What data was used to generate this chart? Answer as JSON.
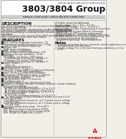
{
  "bg_color": "#f2efe9",
  "header_bg": "#ffffff",
  "title_line1": "MITSUBISHI MICROCOMPUTERS",
  "title_line2": "3803/3804 Group",
  "subtitle": "SINGLE-CHIP 8-BIT CMOS MICROCOMPUTER",
  "description_header": "DESCRIPTION",
  "description_text": [
    "The 3803/3804 group is the microcomputer based on the TAB",
    "family core technology.",
    "The 3803/3804 group is designed for handheld products, office",
    "automation equipment, and controlling systems that require ana-",
    "log signal processing, including the A/D conversion and D/A",
    "conversion.",
    "The 3804 group is the version of the 3803 group to which an PC",
    "3804 control functions have been added."
  ],
  "features_header": "FEATURES",
  "features": [
    [
      "Basic machine language instructions  74",
      0
    ],
    [
      "Minimum instruction execution time  0.33μs",
      0
    ],
    [
      "(at 12 MHz oscillation frequency)",
      6
    ],
    [
      "Memory size",
      0
    ],
    [
      "ROM  to 4 × 16 kilobytes",
      3
    ],
    [
      "RAM  1024 to 2048 bytes",
      3
    ],
    [
      "Program/data memory operations  128",
      0
    ],
    [
      "Software interrupt operations  32-bit",
      0
    ],
    [
      "Interrupts",
      0
    ],
    [
      "13 sources, 54 vectors  3803 group",
      3
    ],
    [
      "(simultaneous interrupt 12, software 7)",
      6
    ],
    [
      "13 sources, 54 vectors  3804 group",
      3
    ],
    [
      "(simultaneous interrupt 12, software 7)",
      6
    ],
    [
      "Timers  16-bit × 1",
      0
    ],
    [
      "3-bit × 2",
      6
    ],
    [
      "(pulse from generation)",
      6
    ],
    [
      "Watchdog timer  16-bit × 1",
      0
    ],
    [
      "Serial I/O  Simple (UART) or Clock synchronous",
      0
    ],
    [
      "(1 to 32 × clock from generation)",
      6
    ],
    [
      "Pulse  16 ms × 1 (basis only available)",
      0
    ],
    [
      "I/O function (CMOS output only)  1-channel",
      0
    ],
    [
      "A/D conversion  10 bits × 16 channels",
      0
    ],
    [
      "(8-bit reading available)",
      6
    ],
    [
      "D/A conversion  8-bit × 1 channels",
      0
    ],
    [
      "I2C address port  0",
      0
    ],
    [
      "Clock generating circuit  System (2 on chip)",
      0
    ],
    [
      "Available in software variable oscillation or quartz crystal oscillation",
      0
    ],
    [
      "Power source voltage",
      0
    ],
    [
      "In single, multiple-speed modes",
      3
    ],
    [
      "At 100 kHz oscillation frequency  2.5 to 5.5 V",
      6
    ],
    [
      "At 10 kHz oscillation frequency  4.0 to 5.5 V",
      6
    ],
    [
      "At 66 MHz oscillation frequency  4.7 to 5.5 V",
      6
    ],
    [
      "In low-speed modes",
      3
    ],
    [
      "At 510 kHz oscillation frequency  4.7 to 5.5 V",
      6
    ],
    [
      "(a Time output of these resonance modes is 4 time 6.4 V)",
      9
    ],
    [
      "Power dissipation",
      0
    ],
    [
      "In 12 MHz oscillation frequency, at 5 V power source voltage",
      3
    ],
    [
      "50 mW (typ.)",
      6
    ],
    [
      "In 10 kHz oscillation frequency, at 5 V power source voltage",
      3
    ],
    [
      "150 μW (typ.)",
      6
    ],
    [
      "Operating temperature range  -20 to 85°C",
      0
    ],
    [
      "Packages",
      0
    ],
    [
      "QFP  64-lead (plastic flat pad size (QFP))",
      3
    ],
    [
      "FPT  48-lead & 48-pin (16 to 12-mm SDIP)",
      3
    ],
    [
      "SHF  64-pin (4×6 pad size (L-QFP))",
      3
    ]
  ],
  "right_col_header": "OTHER SPECIFICATIONS",
  "right_col": [
    [
      "Supply voltage  Vcc = 4.5 ... 5.5 Vy",
      0
    ],
    [
      "Input/Output voltage  -0.5 V...V₂ to 6.5 V",
      0
    ],
    [
      "Programming method  Programming or out of byte",
      0
    ],
    [
      "Writing Method",
      0
    ],
    [
      "Before writing  Parallel (Word & Command)",
      3
    ],
    [
      "Block erasing  VPP (erasing analog mode)",
      3
    ],
    [
      "Programmed Data control by software command",
      0
    ],
    [
      "Number of times for in-system programming  500",
      0
    ],
    [
      "Operating temperature (in high-speed",
      0
    ],
    [
      "programming timing)  Room temperature",
      3
    ]
  ],
  "notes_header": "Notes",
  "notes": [
    "1. Purchased memory devices cannot be used in application over",
    "   oscillation than 500 kHz reset.",
    "2. Supply voltage Vcc of the listed memory oscillation is 4.5 to",
    "   6.0 V."
  ],
  "logo_color": "#cc0000",
  "logo_text": "MITSUBISHI"
}
